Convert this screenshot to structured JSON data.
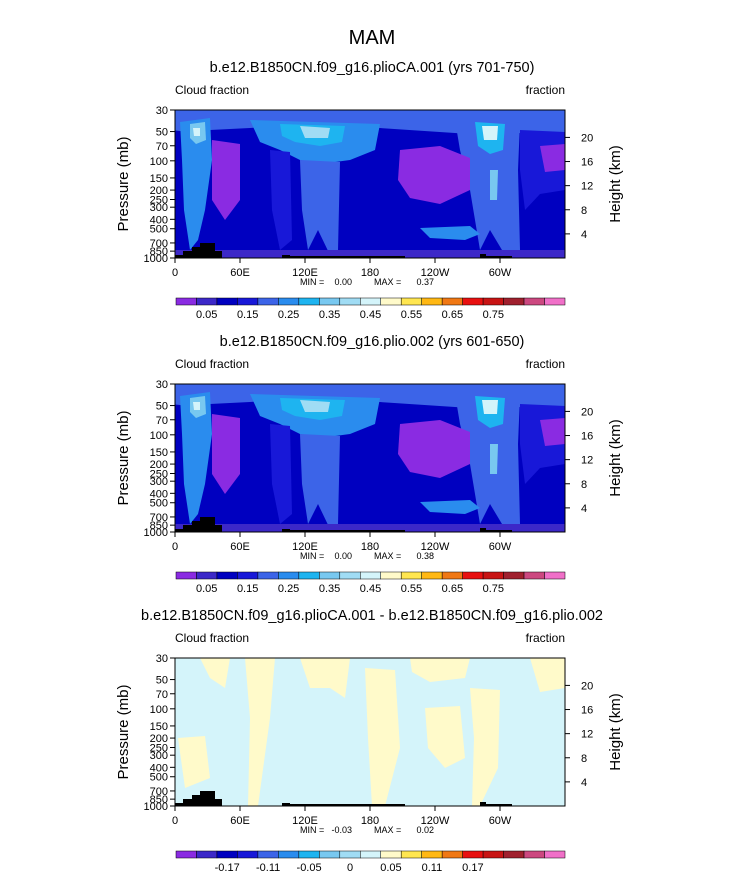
{
  "page": {
    "title": "MAM"
  },
  "palette": {
    "top": [
      "#8a2be2",
      "#3c28c8",
      "#0000c0",
      "#1818d8",
      "#3c64e8",
      "#2a8cee",
      "#1eb4f0",
      "#78c8f0",
      "#a0dcf4",
      "#d4f4fa",
      "#fffaca",
      "#ffe650",
      "#ffb814",
      "#f07814",
      "#e81010",
      "#c81414",
      "#a0202e",
      "#cc4880",
      "#f070c8"
    ],
    "diff": [
      "#8a2be2",
      "#3c28c8",
      "#0000c0",
      "#1818d8",
      "#3c64e8",
      "#2a8cee",
      "#1eb4f0",
      "#78c8f0",
      "#a0dcf4",
      "#d4f4fa",
      "#fffaca",
      "#ffe650",
      "#ffb814",
      "#f07814",
      "#e81010",
      "#c81414",
      "#a0202e",
      "#cc4880",
      "#f070c8"
    ]
  },
  "chart_data": [
    {
      "type": "heatmap",
      "title": "b.e12.B1850CN.f09_g16.plioCA.001 (yrs 701-750)",
      "corner_left": "Cloud fraction",
      "corner_right": "fraction",
      "ylabel": "Pressure (mb)",
      "ylabel_right": "Height (km)",
      "x_ticks": [
        "0",
        "60E",
        "120E",
        "180",
        "120W",
        "60W"
      ],
      "x_tick_values": [
        0,
        60,
        120,
        180,
        240,
        300
      ],
      "xlim": [
        0,
        360
      ],
      "y_ticks": [
        "30",
        "50",
        "70",
        "100",
        "150",
        "200",
        "250",
        "300",
        "400",
        "500",
        "700",
        "850",
        "1000"
      ],
      "y_tick_values": [
        30,
        50,
        70,
        100,
        150,
        200,
        250,
        300,
        400,
        500,
        700,
        850,
        1000
      ],
      "ylim": [
        30,
        1000
      ],
      "y_scale": "log",
      "height_ticks": [
        "20",
        "16",
        "12",
        "8",
        "4"
      ],
      "height_tick_values": [
        20,
        16,
        12,
        8,
        4
      ],
      "stats": {
        "min_label": "MIN =",
        "min": "0.00",
        "max_label": "MAX =",
        "max": "0.37"
      },
      "colorbar_labels": [
        "0.05",
        "0.15",
        "0.25",
        "0.35",
        "0.45",
        "0.55",
        "0.65",
        "0.75"
      ],
      "levels": [
        0.025,
        0.05,
        0.075,
        0.1,
        0.125,
        0.15,
        0.175,
        0.2,
        0.225,
        0.25,
        0.275,
        0.3,
        0.325,
        0.35,
        0.375,
        0.4,
        0.425,
        0.45
      ],
      "colormap": "top"
    },
    {
      "type": "heatmap",
      "title": "b.e12.B1850CN.f09_g16.plio.002 (yrs 601-650)",
      "corner_left": "Cloud fraction",
      "corner_right": "fraction",
      "ylabel": "Pressure (mb)",
      "ylabel_right": "Height (km)",
      "x_ticks": [
        "0",
        "60E",
        "120E",
        "180",
        "120W",
        "60W"
      ],
      "x_tick_values": [
        0,
        60,
        120,
        180,
        240,
        300
      ],
      "xlim": [
        0,
        360
      ],
      "y_ticks": [
        "30",
        "50",
        "70",
        "100",
        "150",
        "200",
        "250",
        "300",
        "400",
        "500",
        "700",
        "850",
        "1000"
      ],
      "y_tick_values": [
        30,
        50,
        70,
        100,
        150,
        200,
        250,
        300,
        400,
        500,
        700,
        850,
        1000
      ],
      "ylim": [
        30,
        1000
      ],
      "y_scale": "log",
      "height_ticks": [
        "20",
        "16",
        "12",
        "8",
        "4"
      ],
      "height_tick_values": [
        20,
        16,
        12,
        8,
        4
      ],
      "stats": {
        "min_label": "MIN =",
        "min": "0.00",
        "max_label": "MAX =",
        "max": "0.38"
      },
      "colorbar_labels": [
        "0.05",
        "0.15",
        "0.25",
        "0.35",
        "0.45",
        "0.55",
        "0.65",
        "0.75"
      ],
      "levels": [
        0.025,
        0.05,
        0.075,
        0.1,
        0.125,
        0.15,
        0.175,
        0.2,
        0.225,
        0.25,
        0.275,
        0.3,
        0.325,
        0.35,
        0.375,
        0.4,
        0.425,
        0.45
      ],
      "colormap": "top"
    },
    {
      "type": "heatmap",
      "title": "b.e12.B1850CN.f09_g16.plioCA.001 - b.e12.B1850CN.f09_g16.plio.002",
      "corner_left": "Cloud fraction",
      "corner_right": "fraction",
      "ylabel": "Pressure (mb)",
      "ylabel_right": "Height (km)",
      "x_ticks": [
        "0",
        "60E",
        "120E",
        "180",
        "120W",
        "60W"
      ],
      "x_tick_values": [
        0,
        60,
        120,
        180,
        240,
        300
      ],
      "xlim": [
        0,
        360
      ],
      "y_ticks": [
        "30",
        "50",
        "70",
        "100",
        "150",
        "200",
        "250",
        "300",
        "400",
        "500",
        "700",
        "850",
        "1000"
      ],
      "y_tick_values": [
        30,
        50,
        70,
        100,
        150,
        200,
        250,
        300,
        400,
        500,
        700,
        850,
        1000
      ],
      "ylim": [
        30,
        1000
      ],
      "y_scale": "log",
      "height_ticks": [
        "20",
        "16",
        "12",
        "8",
        "4"
      ],
      "height_tick_values": [
        20,
        16,
        12,
        8,
        4
      ],
      "stats": {
        "min_label": "MIN =",
        "min": "-0.03",
        "max_label": "MAX =",
        "max": "0.02"
      },
      "colorbar_labels": [
        "-0.17",
        "-0.11",
        "-0.05",
        "0",
        "0.05",
        "0.11",
        "0.17"
      ],
      "levels": [
        -0.2,
        -0.18,
        -0.16,
        -0.14,
        -0.12,
        -0.1,
        -0.08,
        -0.06,
        -0.04,
        -0.02,
        0,
        0.02,
        0.04,
        0.06,
        0.08,
        0.1,
        0.12,
        0.14,
        0.16
      ],
      "colormap": "diff"
    }
  ]
}
